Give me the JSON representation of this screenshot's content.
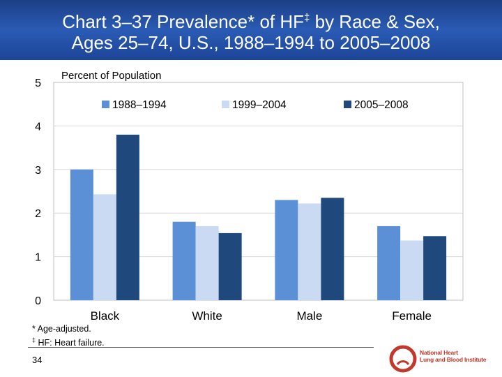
{
  "header": {
    "title_line1_a": "Chart 3–37 Prevalence* of HF",
    "title_line1_sup": "‡",
    "title_line1_b": " by Race & Sex,",
    "title_line2": "Ages 25–74, U.S., 1988–1994 to 2005–2008",
    "background_color": "#2a5bb4"
  },
  "chart_data": {
    "type": "bar",
    "title": "",
    "ylabel": "Percent of Population",
    "xlabel": "",
    "ylim": [
      0,
      5
    ],
    "yticks": [
      0,
      1,
      2,
      3,
      4,
      5
    ],
    "grid": true,
    "legend_position": "top",
    "categories": [
      "Black",
      "White",
      "Male",
      "Female"
    ],
    "series": [
      {
        "name": "1988–1994",
        "color": "#5b8fd6",
        "values": [
          3.0,
          1.8,
          2.3,
          1.7
        ]
      },
      {
        "name": "1999–2004",
        "color": "#c9daf2",
        "values": [
          2.43,
          1.7,
          2.22,
          1.37
        ]
      },
      {
        "name": "2005–2008",
        "color": "#1f497d",
        "values": [
          3.8,
          1.54,
          2.35,
          1.47
        ]
      }
    ]
  },
  "footnotes": {
    "note1": "* Age-adjusted.",
    "note2_sup": "‡",
    "note2": " HF: Heart failure."
  },
  "page_number": "34",
  "logo": {
    "line1": "National Heart",
    "line2": "Lung and Blood Institute",
    "color": "#c0392b"
  }
}
